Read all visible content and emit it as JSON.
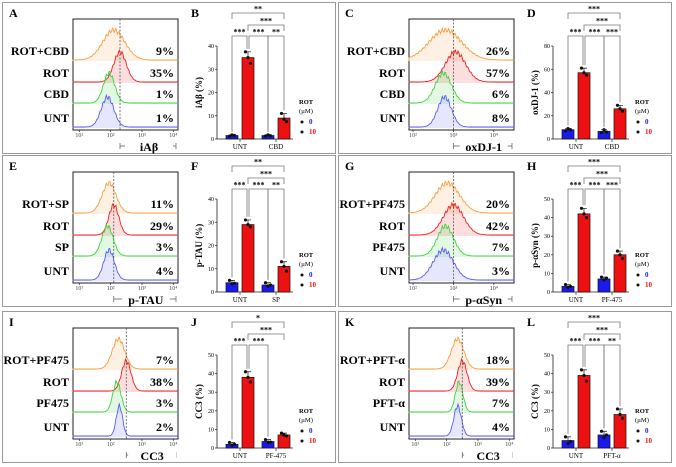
{
  "colors": {
    "orange": "#f5a040",
    "red": "#ee2020",
    "green": "#3fd23f",
    "blue": "#5a5af0",
    "bar_blue": "#1a1aee",
    "bar_red": "#ee1111",
    "gate": "#555555"
  },
  "chart_data": [
    {
      "type": "composite",
      "histogram": {
        "type": "area",
        "letter": "A",
        "marker": "iAβ",
        "xlim": [
          0.8,
          4.15
        ],
        "log_x": true,
        "gate": 2.3,
        "ticks": [
          1,
          2,
          3,
          4
        ],
        "tick_labels": [
          "10¹",
          "10²",
          "10³",
          "10⁴"
        ],
        "tracks": [
          {
            "label": "ROT+CBD",
            "percent": "9%",
            "color": "orange",
            "peak": 2.1,
            "spread": 0.35
          },
          {
            "label": "ROT",
            "percent": "35%",
            "color": "red",
            "peak": 2.3,
            "spread": 0.2
          },
          {
            "label": "CBD",
            "percent": "1%",
            "color": "green",
            "peak": 1.95,
            "spread": 0.18
          },
          {
            "label": "UNT",
            "percent": "1%",
            "color": "blue",
            "peak": 1.9,
            "spread": 0.2
          }
        ]
      },
      "bar": {
        "type": "bar",
        "letter": "B",
        "ylabel": "iAβ (%)",
        "ylim": [
          0,
          40
        ],
        "yticks": [
          0,
          10,
          20,
          30,
          40
        ],
        "categories": [
          "UNT",
          "CBD"
        ],
        "series": [
          {
            "name": "0",
            "values": [
              1.5,
              1.5
            ],
            "points": [
              [
                1.2,
                1.8,
                1.5
              ],
              [
                1.3,
                1.8,
                1.4
              ]
            ]
          },
          {
            "name": "10",
            "values": [
              35,
              9
            ],
            "points": [
              [
                37.5,
                35,
                32.5
              ],
              [
                11,
                8.5,
                7.5
              ]
            ]
          }
        ],
        "legend": {
          "title": "ROT",
          "unit": "(µM)"
        },
        "significance": [
          {
            "a": 0,
            "b": 3,
            "label": "**",
            "level": 3
          },
          {
            "a": 1,
            "b": 3,
            "label": "***",
            "level": 2
          },
          {
            "a": 0,
            "b": 1,
            "label": "***",
            "level": 1
          },
          {
            "a": 1,
            "b": 2,
            "label": "***",
            "level": 1
          },
          {
            "a": 2,
            "b": 3,
            "label": "**",
            "level": 1
          }
        ]
      }
    },
    {
      "type": "composite",
      "histogram": {
        "type": "area",
        "letter": "C",
        "marker": "oxDJ-1",
        "xlim": [
          1.9,
          4.5
        ],
        "log_x": true,
        "gate": 3.0,
        "ticks": [
          2,
          3,
          4
        ],
        "tick_labels": [
          "10²",
          "10³",
          "10⁴"
        ],
        "tracks": [
          {
            "label": "ROT+CBD",
            "percent": "26%",
            "color": "orange",
            "peak": 2.8,
            "spread": 0.4
          },
          {
            "label": "ROT",
            "percent": "57%",
            "color": "red",
            "peak": 3.05,
            "spread": 0.25
          },
          {
            "label": "CBD",
            "percent": "6%",
            "color": "green",
            "peak": 2.75,
            "spread": 0.2
          },
          {
            "label": "UNT",
            "percent": "8%",
            "color": "blue",
            "peak": 2.78,
            "spread": 0.17
          }
        ]
      },
      "bar": {
        "type": "bar",
        "letter": "D",
        "ylabel": "oxDJ-1 (%)",
        "ylim": [
          0,
          80
        ],
        "yticks": [
          0,
          20,
          40,
          60,
          80
        ],
        "categories": [
          "UNT",
          "CBD"
        ],
        "series": [
          {
            "name": "0",
            "values": [
              8,
              6.5
            ],
            "points": [
              [
                7,
                9,
                8
              ],
              [
                5.5,
                8,
                6
              ]
            ]
          },
          {
            "name": "10",
            "values": [
              57,
              26
            ],
            "points": [
              [
                61,
                57,
                55
              ],
              [
                29,
                26,
                24
              ]
            ]
          }
        ],
        "legend": {
          "title": "ROT",
          "unit": "(µM)"
        },
        "significance": [
          {
            "a": 0,
            "b": 3,
            "label": "***",
            "level": 3
          },
          {
            "a": 1,
            "b": 3,
            "label": "***",
            "level": 2
          },
          {
            "a": 0,
            "b": 1,
            "label": "***",
            "level": 1
          },
          {
            "a": 1,
            "b": 2,
            "label": "***",
            "level": 1
          },
          {
            "a": 2,
            "b": 3,
            "label": "***",
            "level": 1
          }
        ]
      }
    },
    {
      "type": "composite",
      "histogram": {
        "type": "area",
        "letter": "E",
        "marker": "p-TAU",
        "xlim": [
          0.8,
          4.15
        ],
        "log_x": true,
        "gate": 2.1,
        "ticks": [
          1,
          2,
          3,
          4
        ],
        "tick_labels": [
          "10¹",
          "10²",
          "10³",
          "10⁴"
        ],
        "tracks": [
          {
            "label": "ROT+SP",
            "percent": "11%",
            "color": "orange",
            "peak": 1.95,
            "spread": 0.22
          },
          {
            "label": "ROT",
            "percent": "29%",
            "color": "red",
            "peak": 2.1,
            "spread": 0.16
          },
          {
            "label": "SP",
            "percent": "3%",
            "color": "green",
            "peak": 1.9,
            "spread": 0.18
          },
          {
            "label": "UNT",
            "percent": "4%",
            "color": "blue",
            "peak": 1.95,
            "spread": 0.17
          }
        ]
      },
      "bar": {
        "type": "bar",
        "letter": "F",
        "ylabel": "p-TAU (%)",
        "ylim": [
          0,
          40
        ],
        "yticks": [
          0,
          10,
          20,
          30,
          40
        ],
        "categories": [
          "UNT",
          "SP"
        ],
        "series": [
          {
            "name": "0",
            "values": [
              4,
              3
            ],
            "points": [
              [
                5,
                3.5,
                3.8
              ],
              [
                4,
                2.5,
                3
              ]
            ]
          },
          {
            "name": "10",
            "values": [
              29,
              11
            ],
            "points": [
              [
                31,
                29,
                28
              ],
              [
                13,
                11,
                9
              ]
            ]
          }
        ],
        "legend": {
          "title": "ROT",
          "unit": "(µM)"
        },
        "significance": [
          {
            "a": 0,
            "b": 3,
            "label": "**",
            "level": 3
          },
          {
            "a": 1,
            "b": 3,
            "label": "***",
            "level": 2
          },
          {
            "a": 0,
            "b": 1,
            "label": "***",
            "level": 1
          },
          {
            "a": 1,
            "b": 2,
            "label": "***",
            "level": 1
          },
          {
            "a": 2,
            "b": 3,
            "label": "**",
            "level": 1
          }
        ]
      }
    },
    {
      "type": "composite",
      "histogram": {
        "type": "area",
        "letter": "G",
        "marker": "p-αSyn",
        "xlim": [
          1.9,
          4.5
        ],
        "log_x": true,
        "gate": 3.0,
        "ticks": [
          2,
          3,
          4
        ],
        "tick_labels": [
          "10²",
          "10³",
          "10⁴"
        ],
        "tracks": [
          {
            "label": "ROT+PF475",
            "percent": "20%",
            "color": "orange",
            "peak": 2.85,
            "spread": 0.3
          },
          {
            "label": "ROT",
            "percent": "42%",
            "color": "red",
            "peak": 3.0,
            "spread": 0.25
          },
          {
            "label": "PF475",
            "percent": "7%",
            "color": "green",
            "peak": 2.8,
            "spread": 0.2
          },
          {
            "label": "UNT",
            "percent": "3%",
            "color": "blue",
            "peak": 2.75,
            "spread": 0.25
          }
        ]
      },
      "bar": {
        "type": "bar",
        "letter": "H",
        "ylabel": "p-αSyn (%)",
        "ylim": [
          0,
          50
        ],
        "yticks": [
          0,
          10,
          20,
          30,
          40,
          50
        ],
        "categories": [
          "UNT",
          "PF-475"
        ],
        "series": [
          {
            "name": "0",
            "values": [
              3,
              7
            ],
            "points": [
              [
                4,
                2.5,
                3
              ],
              [
                8,
                6.5,
                7.5
              ]
            ]
          },
          {
            "name": "10",
            "values": [
              42,
              20
            ],
            "points": [
              [
                45,
                42,
                40
              ],
              [
                22,
                20,
                18
              ]
            ]
          }
        ],
        "legend": {
          "title": "ROT",
          "unit": "(µM)"
        },
        "significance": [
          {
            "a": 0,
            "b": 3,
            "label": "***",
            "level": 3
          },
          {
            "a": 1,
            "b": 3,
            "label": "***",
            "level": 2
          },
          {
            "a": 0,
            "b": 1,
            "label": "***",
            "level": 1
          },
          {
            "a": 1,
            "b": 2,
            "label": "***",
            "level": 1
          },
          {
            "a": 2,
            "b": 3,
            "label": "***",
            "level": 1
          }
        ]
      }
    },
    {
      "type": "composite",
      "histogram": {
        "type": "area",
        "letter": "I",
        "marker": "CC3",
        "xlim": [
          0.8,
          4.15
        ],
        "log_x": true,
        "gate": 2.5,
        "ticks": [
          1,
          2,
          3,
          4
        ],
        "tick_labels": [
          "10¹",
          "10²",
          "10³",
          "10⁴"
        ],
        "tracks": [
          {
            "label": "ROT+PF475",
            "percent": "7%",
            "color": "orange",
            "peak": 2.25,
            "spread": 0.2
          },
          {
            "label": "ROT",
            "percent": "38%",
            "color": "red",
            "peak": 2.5,
            "spread": 0.15
          },
          {
            "label": "PF475",
            "percent": "3%",
            "color": "green",
            "peak": 2.2,
            "spread": 0.13
          },
          {
            "label": "UNT",
            "percent": "2%",
            "color": "blue",
            "peak": 2.28,
            "spread": 0.1
          }
        ]
      },
      "bar": {
        "type": "bar",
        "letter": "J",
        "ylabel": "CC3 (%)",
        "ylim": [
          0,
          50
        ],
        "yticks": [
          0,
          10,
          20,
          30,
          40,
          50
        ],
        "categories": [
          "UNT",
          "PF-475"
        ],
        "series": [
          {
            "name": "0",
            "values": [
              2,
              3.5
            ],
            "points": [
              [
                3,
                1.5,
                2
              ],
              [
                4.5,
                3,
                3.2
              ]
            ]
          },
          {
            "name": "10",
            "values": [
              38,
              7
            ],
            "points": [
              [
                41,
                38,
                35.5
              ],
              [
                8,
                7,
                6.5
              ]
            ]
          }
        ],
        "legend": {
          "title": "ROT",
          "unit": "(µM)"
        },
        "significance": [
          {
            "a": 0,
            "b": 3,
            "label": "*",
            "level": 3
          },
          {
            "a": 1,
            "b": 3,
            "label": "***",
            "level": 2
          },
          {
            "a": 0,
            "b": 1,
            "label": "***",
            "level": 1
          },
          {
            "a": 1,
            "b": 2,
            "label": "***",
            "level": 1
          }
        ]
      }
    },
    {
      "type": "composite",
      "histogram": {
        "type": "area",
        "letter": "K",
        "marker": "CC3",
        "xlim": [
          0.8,
          4.15
        ],
        "log_x": true,
        "gate": 2.5,
        "ticks": [
          1,
          2,
          3,
          4
        ],
        "tick_labels": [
          "10¹",
          "10²",
          "10³",
          "10⁴"
        ],
        "tracks": [
          {
            "label": "ROT+PFT-α",
            "percent": "18%",
            "color": "orange",
            "peak": 2.35,
            "spread": 0.2
          },
          {
            "label": "ROT",
            "percent": "39%",
            "color": "red",
            "peak": 2.5,
            "spread": 0.15
          },
          {
            "label": "PFT-α",
            "percent": "7%",
            "color": "green",
            "peak": 2.4,
            "spread": 0.12
          },
          {
            "label": "UNT",
            "percent": "4%",
            "color": "blue",
            "peak": 2.35,
            "spread": 0.12
          }
        ]
      },
      "bar": {
        "type": "bar",
        "letter": "L",
        "ylabel": "CC3 (%)",
        "ylim": [
          0,
          50
        ],
        "yticks": [
          0,
          10,
          20,
          30,
          40,
          50
        ],
        "categories": [
          "UNT",
          "PFT-α"
        ],
        "series": [
          {
            "name": "0",
            "values": [
              4,
              7
            ],
            "points": [
              [
                6,
                2.5,
                3.5
              ],
              [
                9,
                5.5,
                7
              ]
            ]
          },
          {
            "name": "10",
            "values": [
              39,
              18
            ],
            "points": [
              [
                42,
                39,
                36
              ],
              [
                21,
                18,
                16
              ]
            ]
          }
        ],
        "legend": {
          "title": "ROT",
          "unit": "(µM)"
        },
        "significance": [
          {
            "a": 0,
            "b": 3,
            "label": "***",
            "level": 3
          },
          {
            "a": 1,
            "b": 3,
            "label": "***",
            "level": 2
          },
          {
            "a": 0,
            "b": 1,
            "label": "***",
            "level": 1
          },
          {
            "a": 1,
            "b": 2,
            "label": "***",
            "level": 1
          },
          {
            "a": 2,
            "b": 3,
            "label": "**",
            "level": 1
          }
        ]
      }
    }
  ]
}
